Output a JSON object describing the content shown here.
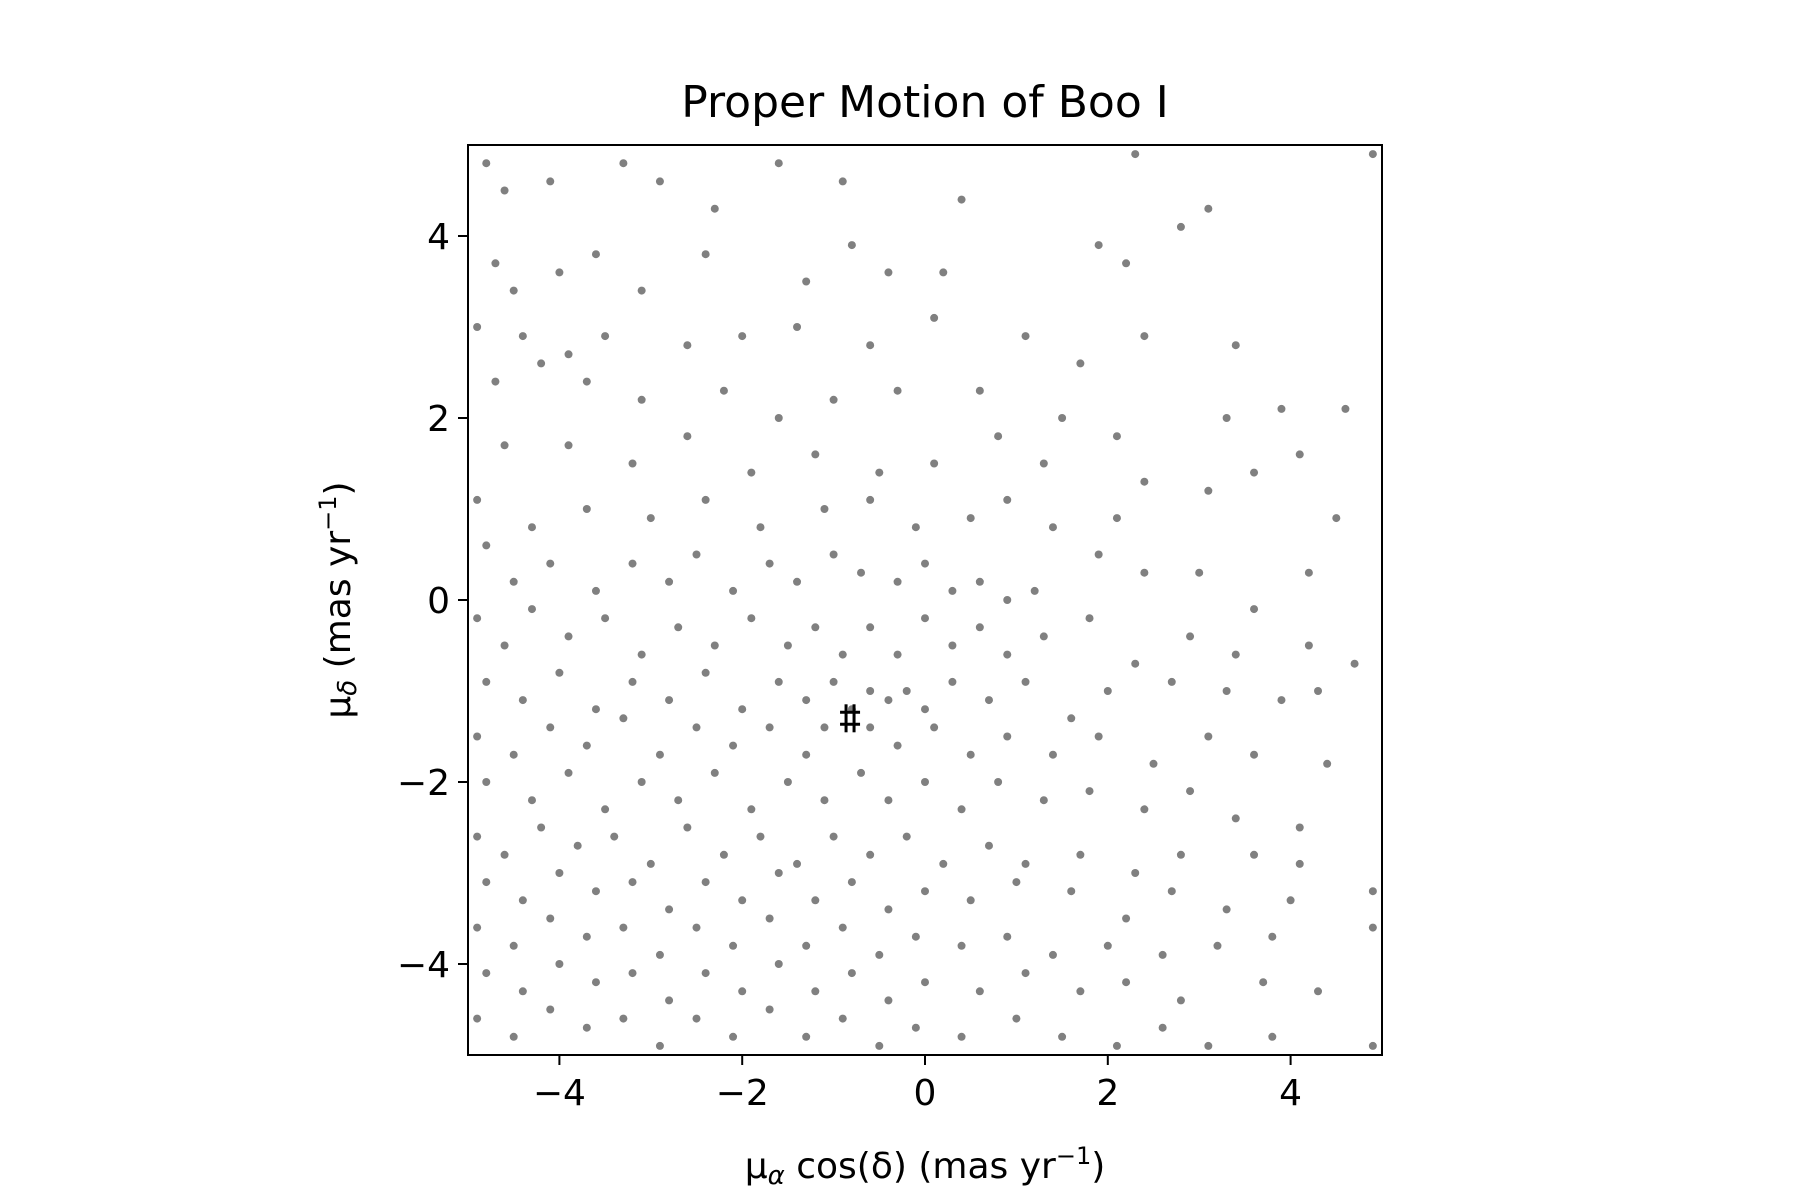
{
  "chart_data": {
    "type": "scatter",
    "title": "Proper Motion of Boo I",
    "xlabel": {
      "base": "μ",
      "sub": "α",
      "mid": " cos(δ) (mas yr",
      "sup": "−1",
      "end": ")"
    },
    "ylabel": {
      "base": "μ",
      "sub": "δ",
      "mid": " (mas yr",
      "sup": "−1",
      "end": ")"
    },
    "xlim": [
      -5,
      5
    ],
    "ylim": [
      -5,
      5
    ],
    "xticks": [
      -4,
      -2,
      0,
      2,
      4
    ],
    "yticks": [
      -4,
      -2,
      0,
      2,
      4
    ],
    "xtick_labels": [
      "−4",
      "−2",
      "0",
      "2",
      "4"
    ],
    "ytick_labels": [
      "−4",
      "−2",
      "0",
      "2",
      "4"
    ],
    "grid": false,
    "legend": "none",
    "series": [
      {
        "marker": "dot",
        "color": "#808080",
        "count_estimate": 1600,
        "distribution": "field stars, denser toward lower-left, concentrated around (-0.6,-1.1)",
        "points": [
          [
            -4.8,
            4.8
          ],
          [
            -4.6,
            4.5
          ],
          [
            -4.1,
            4.6
          ],
          [
            -3.3,
            4.8
          ],
          [
            -2.9,
            4.6
          ],
          [
            -2.3,
            4.3
          ],
          [
            -1.6,
            4.8
          ],
          [
            -0.9,
            4.6
          ],
          [
            0.4,
            4.4
          ],
          [
            2.3,
            4.9
          ],
          [
            4.9,
            4.9
          ],
          [
            -4.7,
            3.7
          ],
          [
            -4.5,
            3.4
          ],
          [
            -4.0,
            3.6
          ],
          [
            -3.6,
            3.8
          ],
          [
            -3.1,
            3.4
          ],
          [
            -2.4,
            3.8
          ],
          [
            -1.3,
            3.5
          ],
          [
            -0.8,
            3.9
          ],
          [
            -0.4,
            3.6
          ],
          [
            0.2,
            3.6
          ],
          [
            1.9,
            3.9
          ],
          [
            2.2,
            3.7
          ],
          [
            2.8,
            4.1
          ],
          [
            3.1,
            4.3
          ],
          [
            -4.9,
            3.0
          ],
          [
            -4.4,
            2.9
          ],
          [
            -3.9,
            2.7
          ],
          [
            -3.5,
            2.9
          ],
          [
            -2.6,
            2.8
          ],
          [
            -2.0,
            2.9
          ],
          [
            -1.4,
            3.0
          ],
          [
            -0.6,
            2.8
          ],
          [
            0.1,
            3.1
          ],
          [
            1.1,
            2.9
          ],
          [
            1.7,
            2.6
          ],
          [
            2.4,
            2.9
          ],
          [
            3.4,
            2.8
          ],
          [
            -4.7,
            2.4
          ],
          [
            -4.2,
            2.6
          ],
          [
            -3.7,
            2.4
          ],
          [
            -3.1,
            2.2
          ],
          [
            -2.2,
            2.3
          ],
          [
            -1.6,
            2.0
          ],
          [
            -1.0,
            2.2
          ],
          [
            -0.3,
            2.3
          ],
          [
            0.6,
            2.3
          ],
          [
            1.5,
            2.0
          ],
          [
            2.1,
            1.8
          ],
          [
            3.3,
            2.0
          ],
          [
            3.9,
            2.1
          ],
          [
            4.6,
            2.1
          ],
          [
            -4.6,
            1.7
          ],
          [
            -3.9,
            1.7
          ],
          [
            -3.2,
            1.5
          ],
          [
            -2.6,
            1.8
          ],
          [
            -1.9,
            1.4
          ],
          [
            -1.2,
            1.6
          ],
          [
            -0.5,
            1.4
          ],
          [
            0.1,
            1.5
          ],
          [
            0.8,
            1.8
          ],
          [
            1.3,
            1.5
          ],
          [
            2.4,
            1.3
          ],
          [
            3.1,
            1.2
          ],
          [
            3.6,
            1.4
          ],
          [
            4.1,
            1.6
          ],
          [
            -4.9,
            1.1
          ],
          [
            -4.3,
            0.8
          ],
          [
            -3.7,
            1.0
          ],
          [
            -3.0,
            0.9
          ],
          [
            -2.4,
            1.1
          ],
          [
            -1.8,
            0.8
          ],
          [
            -1.1,
            1.0
          ],
          [
            -0.6,
            1.1
          ],
          [
            -0.1,
            0.8
          ],
          [
            0.5,
            0.9
          ],
          [
            0.9,
            1.1
          ],
          [
            1.4,
            0.8
          ],
          [
            2.1,
            0.9
          ],
          [
            3.0,
            0.3
          ],
          [
            4.2,
            0.3
          ],
          [
            4.5,
            0.9
          ],
          [
            -4.8,
            0.6
          ],
          [
            -4.5,
            0.2
          ],
          [
            -4.1,
            0.4
          ],
          [
            -3.6,
            0.1
          ],
          [
            -3.2,
            0.4
          ],
          [
            -2.8,
            0.2
          ],
          [
            -2.5,
            0.5
          ],
          [
            -2.1,
            0.1
          ],
          [
            -1.7,
            0.4
          ],
          [
            -1.4,
            0.2
          ],
          [
            -1.0,
            0.5
          ],
          [
            -0.7,
            0.3
          ],
          [
            -0.3,
            0.2
          ],
          [
            0.0,
            0.4
          ],
          [
            0.3,
            0.1
          ],
          [
            0.6,
            0.2
          ],
          [
            0.9,
            0.0
          ],
          [
            1.2,
            0.1
          ],
          [
            1.9,
            0.5
          ],
          [
            2.4,
            0.3
          ],
          [
            3.6,
            -0.1
          ],
          [
            -4.9,
            -0.2
          ],
          [
            -4.6,
            -0.5
          ],
          [
            -4.3,
            -0.1
          ],
          [
            -3.9,
            -0.4
          ],
          [
            -3.5,
            -0.2
          ],
          [
            -3.1,
            -0.6
          ],
          [
            -2.7,
            -0.3
          ],
          [
            -2.3,
            -0.5
          ],
          [
            -1.9,
            -0.2
          ],
          [
            -1.5,
            -0.5
          ],
          [
            -1.2,
            -0.3
          ],
          [
            -0.9,
            -0.6
          ],
          [
            -0.6,
            -0.3
          ],
          [
            -0.3,
            -0.6
          ],
          [
            0.0,
            -0.2
          ],
          [
            0.3,
            -0.5
          ],
          [
            0.6,
            -0.3
          ],
          [
            0.9,
            -0.6
          ],
          [
            1.3,
            -0.4
          ],
          [
            1.8,
            -0.2
          ],
          [
            2.3,
            -0.7
          ],
          [
            2.9,
            -0.4
          ],
          [
            3.4,
            -0.6
          ],
          [
            4.2,
            -0.5
          ],
          [
            4.7,
            -0.7
          ],
          [
            -4.8,
            -0.9
          ],
          [
            -4.4,
            -1.1
          ],
          [
            -4.0,
            -0.8
          ],
          [
            -3.6,
            -1.2
          ],
          [
            -3.2,
            -0.9
          ],
          [
            -2.8,
            -1.1
          ],
          [
            -2.4,
            -0.8
          ],
          [
            -2.0,
            -1.2
          ],
          [
            -1.6,
            -0.9
          ],
          [
            -1.3,
            -1.1
          ],
          [
            -1.0,
            -0.9
          ],
          [
            -0.8,
            -1.2
          ],
          [
            -0.6,
            -1.0
          ],
          [
            -0.4,
            -1.1
          ],
          [
            -0.2,
            -1.0
          ],
          [
            0.0,
            -1.2
          ],
          [
            0.3,
            -0.9
          ],
          [
            0.7,
            -1.1
          ],
          [
            1.1,
            -0.9
          ],
          [
            1.6,
            -1.3
          ],
          [
            2.0,
            -1.0
          ],
          [
            2.7,
            -0.9
          ],
          [
            3.3,
            -1.0
          ],
          [
            3.9,
            -1.1
          ],
          [
            4.3,
            -1.0
          ],
          [
            -4.9,
            -1.5
          ],
          [
            -4.5,
            -1.7
          ],
          [
            -4.1,
            -1.4
          ],
          [
            -3.7,
            -1.6
          ],
          [
            -3.3,
            -1.3
          ],
          [
            -2.9,
            -1.7
          ],
          [
            -2.5,
            -1.4
          ],
          [
            -2.1,
            -1.6
          ],
          [
            -1.7,
            -1.4
          ],
          [
            -1.3,
            -1.7
          ],
          [
            -1.1,
            -1.4
          ],
          [
            -0.6,
            -1.4
          ],
          [
            -0.3,
            -1.6
          ],
          [
            0.1,
            -1.4
          ],
          [
            0.5,
            -1.7
          ],
          [
            0.9,
            -1.5
          ],
          [
            1.4,
            -1.7
          ],
          [
            1.9,
            -1.5
          ],
          [
            2.5,
            -1.8
          ],
          [
            3.1,
            -1.5
          ],
          [
            3.6,
            -1.7
          ],
          [
            4.4,
            -1.8
          ],
          [
            -4.8,
            -2.0
          ],
          [
            -4.3,
            -2.2
          ],
          [
            -3.9,
            -1.9
          ],
          [
            -3.5,
            -2.3
          ],
          [
            -3.1,
            -2.0
          ],
          [
            -2.7,
            -2.2
          ],
          [
            -2.3,
            -1.9
          ],
          [
            -1.9,
            -2.3
          ],
          [
            -1.5,
            -2.0
          ],
          [
            -1.1,
            -2.2
          ],
          [
            -0.7,
            -1.9
          ],
          [
            -0.4,
            -2.2
          ],
          [
            0.0,
            -2.0
          ],
          [
            0.4,
            -2.3
          ],
          [
            0.8,
            -2.0
          ],
          [
            1.3,
            -2.2
          ],
          [
            1.8,
            -2.1
          ],
          [
            2.4,
            -2.3
          ],
          [
            2.9,
            -2.1
          ],
          [
            3.4,
            -2.4
          ],
          [
            4.1,
            -2.5
          ],
          [
            -4.9,
            -2.6
          ],
          [
            -4.6,
            -2.8
          ],
          [
            -4.2,
            -2.5
          ],
          [
            -3.8,
            -2.7
          ],
          [
            -3.4,
            -2.6
          ],
          [
            -3.0,
            -2.9
          ],
          [
            -2.6,
            -2.5
          ],
          [
            -2.2,
            -2.8
          ],
          [
            -1.8,
            -2.6
          ],
          [
            -1.4,
            -2.9
          ],
          [
            -1.0,
            -2.6
          ],
          [
            -0.6,
            -2.8
          ],
          [
            -0.2,
            -2.6
          ],
          [
            0.2,
            -2.9
          ],
          [
            0.7,
            -2.7
          ],
          [
            1.1,
            -2.9
          ],
          [
            1.7,
            -2.8
          ],
          [
            2.3,
            -3.0
          ],
          [
            2.8,
            -2.8
          ],
          [
            3.6,
            -2.8
          ],
          [
            4.1,
            -2.9
          ],
          [
            -4.8,
            -3.1
          ],
          [
            -4.4,
            -3.3
          ],
          [
            -4.0,
            -3.0
          ],
          [
            -3.6,
            -3.2
          ],
          [
            -3.2,
            -3.1
          ],
          [
            -2.8,
            -3.4
          ],
          [
            -2.4,
            -3.1
          ],
          [
            -2.0,
            -3.3
          ],
          [
            -1.6,
            -3.0
          ],
          [
            -1.2,
            -3.3
          ],
          [
            -0.8,
            -3.1
          ],
          [
            -0.4,
            -3.4
          ],
          [
            0.0,
            -3.2
          ],
          [
            0.5,
            -3.3
          ],
          [
            1.0,
            -3.1
          ],
          [
            1.6,
            -3.2
          ],
          [
            2.2,
            -3.5
          ],
          [
            2.7,
            -3.2
          ],
          [
            3.3,
            -3.4
          ],
          [
            4.0,
            -3.3
          ],
          [
            4.9,
            -3.2
          ],
          [
            -4.9,
            -3.6
          ],
          [
            -4.5,
            -3.8
          ],
          [
            -4.1,
            -3.5
          ],
          [
            -3.7,
            -3.7
          ],
          [
            -3.3,
            -3.6
          ],
          [
            -2.9,
            -3.9
          ],
          [
            -2.5,
            -3.6
          ],
          [
            -2.1,
            -3.8
          ],
          [
            -1.7,
            -3.5
          ],
          [
            -1.3,
            -3.8
          ],
          [
            -0.9,
            -3.6
          ],
          [
            -0.5,
            -3.9
          ],
          [
            -0.1,
            -3.7
          ],
          [
            0.4,
            -3.8
          ],
          [
            0.9,
            -3.7
          ],
          [
            1.4,
            -3.9
          ],
          [
            2.0,
            -3.8
          ],
          [
            2.6,
            -3.9
          ],
          [
            3.2,
            -3.8
          ],
          [
            3.8,
            -3.7
          ],
          [
            4.9,
            -3.6
          ],
          [
            -4.8,
            -4.1
          ],
          [
            -4.4,
            -4.3
          ],
          [
            -4.0,
            -4.0
          ],
          [
            -3.6,
            -4.2
          ],
          [
            -3.2,
            -4.1
          ],
          [
            -2.8,
            -4.4
          ],
          [
            -2.4,
            -4.1
          ],
          [
            -2.0,
            -4.3
          ],
          [
            -1.6,
            -4.0
          ],
          [
            -1.2,
            -4.3
          ],
          [
            -0.8,
            -4.1
          ],
          [
            -0.4,
            -4.4
          ],
          [
            0.0,
            -4.2
          ],
          [
            0.6,
            -4.3
          ],
          [
            1.1,
            -4.1
          ],
          [
            1.7,
            -4.3
          ],
          [
            2.2,
            -4.2
          ],
          [
            2.8,
            -4.4
          ],
          [
            3.7,
            -4.2
          ],
          [
            4.3,
            -4.3
          ],
          [
            -4.9,
            -4.6
          ],
          [
            -4.5,
            -4.8
          ],
          [
            -4.1,
            -4.5
          ],
          [
            -3.7,
            -4.7
          ],
          [
            -3.3,
            -4.6
          ],
          [
            -2.9,
            -4.9
          ],
          [
            -2.5,
            -4.6
          ],
          [
            -2.1,
            -4.8
          ],
          [
            -1.7,
            -4.5
          ],
          [
            -1.3,
            -4.8
          ],
          [
            -0.9,
            -4.6
          ],
          [
            -0.5,
            -4.9
          ],
          [
            -0.1,
            -4.7
          ],
          [
            0.4,
            -4.8
          ],
          [
            1.0,
            -4.6
          ],
          [
            1.5,
            -4.8
          ],
          [
            2.1,
            -4.9
          ],
          [
            2.6,
            -4.7
          ],
          [
            3.1,
            -4.9
          ],
          [
            3.8,
            -4.8
          ],
          [
            4.9,
            -4.9
          ]
        ]
      }
    ],
    "annotations": [
      {
        "marker": "errorbar-plus",
        "x": -0.82,
        "y": -1.3,
        "color": "#000000"
      }
    ]
  }
}
